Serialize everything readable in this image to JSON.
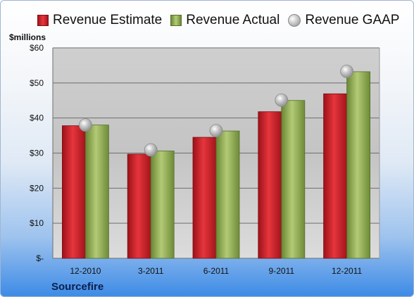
{
  "legend": {
    "estimate": "Revenue Estimate",
    "actual": "Revenue Actual",
    "gaap": "Revenue GAAP"
  },
  "unit_label": "$millions",
  "brand": "Sourcefire",
  "colors": {
    "estimate": "#d4242b",
    "actual": "#8fae52",
    "gaap": "#b8b8b8",
    "plot_bg": "#c9c9c9"
  },
  "chart_data": {
    "type": "bar",
    "categories": [
      "12-2010",
      "3-2011",
      "6-2011",
      "9-2011",
      "12-2011"
    ],
    "series": [
      {
        "name": "Revenue Estimate",
        "kind": "bar",
        "values": [
          37.8,
          29.7,
          34.5,
          41.8,
          46.9
        ]
      },
      {
        "name": "Revenue Actual",
        "kind": "bar",
        "values": [
          38.0,
          30.6,
          36.3,
          45.0,
          53.2
        ]
      },
      {
        "name": "Revenue GAAP",
        "kind": "marker",
        "values": [
          38.0,
          30.9,
          36.4,
          45.1,
          53.3
        ]
      }
    ],
    "ylim": [
      0,
      60
    ],
    "yticks": [
      {
        "value": 0,
        "label": "$-"
      },
      {
        "value": 10,
        "label": "$10"
      },
      {
        "value": 20,
        "label": "$20"
      },
      {
        "value": 30,
        "label": "$30"
      },
      {
        "value": 40,
        "label": "$40"
      },
      {
        "value": 50,
        "label": "$50"
      },
      {
        "value": 60,
        "label": "$60"
      }
    ],
    "grid": true,
    "legend_position": "top"
  }
}
